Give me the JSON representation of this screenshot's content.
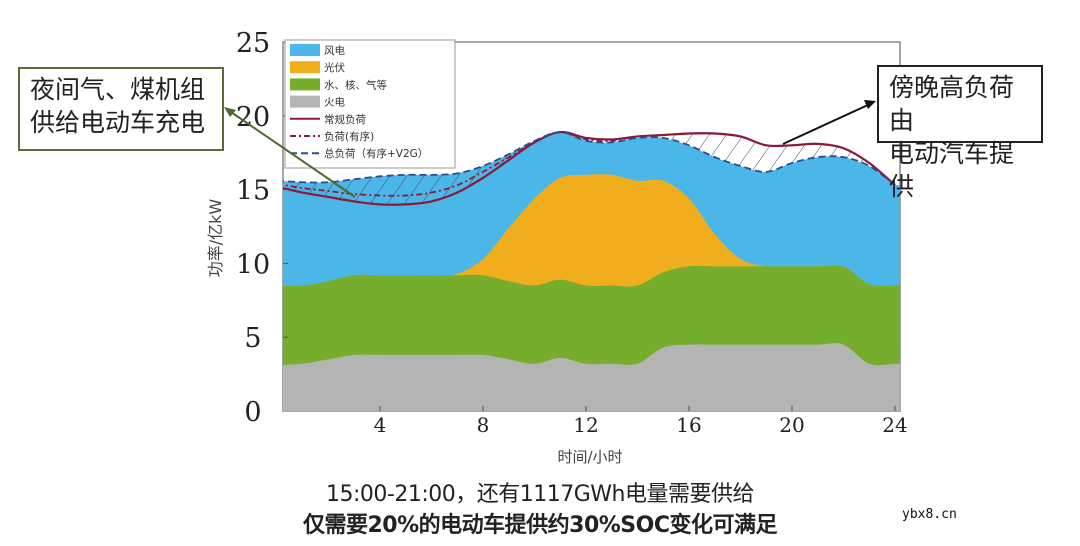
{
  "chart_data": {
    "type": "area",
    "title": "",
    "xlabel": "时间/小时",
    "ylabel": "功率/亿kW",
    "xlim": [
      0,
      24
    ],
    "ylim": [
      0,
      25
    ],
    "xticks": [
      4,
      8,
      12,
      16,
      20,
      24
    ],
    "yticks": [
      0,
      5,
      10,
      15,
      20,
      25
    ],
    "grid": false,
    "legend_position": "upper left",
    "x": [
      0,
      1,
      2,
      3,
      4,
      5,
      6,
      7,
      8,
      9,
      10,
      11,
      12,
      13,
      14,
      15,
      16,
      17,
      18,
      19,
      20,
      21,
      22,
      23,
      24
    ],
    "stacked_series": [
      {
        "name": "火电",
        "color": "#b4b4b4",
        "top": [
          3.1,
          3.2,
          3.5,
          3.8,
          3.8,
          3.8,
          3.8,
          3.8,
          3.8,
          3.5,
          3.2,
          3.6,
          3.2,
          3.2,
          3.2,
          4.3,
          4.5,
          4.5,
          4.5,
          4.5,
          4.5,
          4.5,
          4.5,
          3.2,
          3.2
        ]
      },
      {
        "name": "水、核、气等",
        "color": "#77ad2d",
        "top": [
          8.5,
          8.5,
          8.8,
          9.2,
          9.2,
          9.2,
          9.2,
          9.2,
          9.2,
          8.8,
          8.5,
          8.9,
          8.5,
          8.5,
          8.5,
          9.4,
          9.8,
          9.8,
          9.8,
          9.8,
          9.8,
          9.8,
          9.8,
          8.6,
          8.5
        ]
      },
      {
        "name": "光伏",
        "color": "#f0ae1e",
        "top": [
          8.5,
          8.5,
          8.8,
          9.2,
          9.2,
          9.2,
          9.2,
          9.3,
          10.3,
          12.4,
          14.4,
          15.8,
          16.0,
          16.0,
          15.6,
          15.6,
          14.4,
          12.0,
          10.3,
          9.8,
          9.8,
          9.8,
          9.8,
          8.6,
          8.5
        ]
      },
      {
        "name": "风电",
        "color": "#4bb6e8",
        "top": [
          15.6,
          15.5,
          15.5,
          15.7,
          15.9,
          16.0,
          16.0,
          16.1,
          16.6,
          17.4,
          18.3,
          18.9,
          18.3,
          18.2,
          18.5,
          18.5,
          18.0,
          17.2,
          16.6,
          16.2,
          16.8,
          17.2,
          17.2,
          16.6,
          15.3
        ]
      }
    ],
    "line_series": [
      {
        "name": "常规负荷",
        "style": "solid",
        "color": "#8b1a3a",
        "values": [
          15.2,
          14.8,
          14.5,
          14.2,
          14.0,
          14.0,
          14.2,
          14.8,
          15.8,
          17.0,
          18.2,
          18.9,
          18.5,
          18.4,
          18.6,
          18.7,
          18.8,
          18.8,
          18.6,
          18.0,
          18.0,
          18.1,
          17.8,
          16.8,
          15.3
        ]
      },
      {
        "name": "负荷(有序)",
        "style": "dash-dot",
        "color": "#8b1a3a",
        "values": [
          15.4,
          15.1,
          14.9,
          14.7,
          14.6,
          14.6,
          14.8,
          15.3,
          16.2,
          17.2,
          18.2,
          18.9,
          18.4,
          18.3,
          18.6,
          18.7,
          18.8,
          18.8,
          18.6,
          18.0,
          18.0,
          18.1,
          17.8,
          16.8,
          15.3
        ]
      },
      {
        "name": "总负荷（有序+V2G）",
        "style": "dashed",
        "color": "#2a4f8a",
        "values": [
          15.6,
          15.5,
          15.5,
          15.7,
          15.9,
          16.0,
          16.0,
          16.1,
          16.6,
          17.4,
          18.3,
          18.9,
          18.3,
          18.2,
          18.5,
          18.5,
          18.0,
          17.2,
          16.6,
          16.2,
          16.8,
          17.2,
          17.2,
          16.6,
          15.3
        ]
      }
    ],
    "legend": [
      "风电",
      "光伏",
      "水、核、气等",
      "火电",
      "常规负荷",
      "负荷(有序)",
      "总负荷（有序+V2G）"
    ],
    "annotations": [
      {
        "text": "夜间气、煤机组供给电动车充电",
        "points_to_hour": 3.5
      },
      {
        "text": "傍晚高负荷由电动汽车提供",
        "points_to_hour": 19
      }
    ]
  },
  "callouts": {
    "left_line1": "夜间气、煤机组",
    "left_line2": "供给电动车充电",
    "right_line1": "傍晚高负荷由",
    "right_line2": "电动汽车提供"
  },
  "captions": {
    "line1": "15:00-21:00，还有1117GWh电量需要供给",
    "line2": "仅需要20%的电动车提供约30%SOC变化可满足"
  },
  "watermark": "ybx8.cn"
}
